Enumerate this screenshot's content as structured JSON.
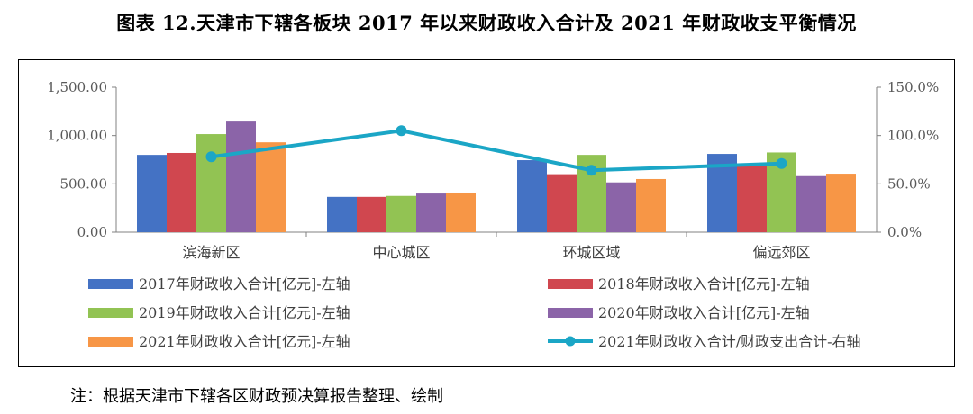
{
  "figure": {
    "title": "图表 12.天津市下辖各板块 2017 年以来财政收入合计及 2021 年财政收支平衡情况",
    "note": "注：根据天津市下辖各区财政预决算报告整理、绘制"
  },
  "chart_data": {
    "type": "bar",
    "categories": [
      "滨海新区",
      "中心城区",
      "环城区域",
      "偏远郊区"
    ],
    "series": [
      {
        "name": "2017年财政收入合计[亿元]-左轴",
        "kind": "bar",
        "axis": "left",
        "color": "#4472C4",
        "values": [
          800,
          365,
          745,
          810
        ]
      },
      {
        "name": "2018年财政收入合计[亿元]-左轴",
        "kind": "bar",
        "axis": "left",
        "color": "#D0474F",
        "values": [
          820,
          365,
          600,
          690
        ]
      },
      {
        "name": "2019年财政收入合计[亿元]-左轴",
        "kind": "bar",
        "axis": "left",
        "color": "#92C353",
        "values": [
          1015,
          375,
          800,
          825
        ]
      },
      {
        "name": "2020年财政收入合计[亿元]-左轴",
        "kind": "bar",
        "axis": "left",
        "color": "#8B64A8",
        "values": [
          1145,
          400,
          515,
          580
        ]
      },
      {
        "name": "2021年财政收入合计[亿元]-左轴",
        "kind": "bar",
        "axis": "left",
        "color": "#F79646",
        "values": [
          930,
          410,
          550,
          605
        ]
      },
      {
        "name": "2021年财政收入合计/财政支出合计-右轴",
        "kind": "line",
        "axis": "right",
        "color": "#1BA6C6",
        "values": [
          78,
          105,
          64,
          71
        ]
      }
    ],
    "left_axis": {
      "min": 0,
      "max": 1500,
      "ticks": [
        0,
        500,
        1000,
        1500
      ],
      "labels": [
        "0.00",
        "500.00",
        "1,000.00",
        "1,500.00"
      ]
    },
    "right_axis": {
      "min": 0,
      "max": 150,
      "ticks": [
        0,
        50,
        100,
        150
      ],
      "labels": [
        "0.0%",
        "50.0%",
        "100.0%",
        "150.0%"
      ]
    },
    "legend_position": "bottom"
  }
}
